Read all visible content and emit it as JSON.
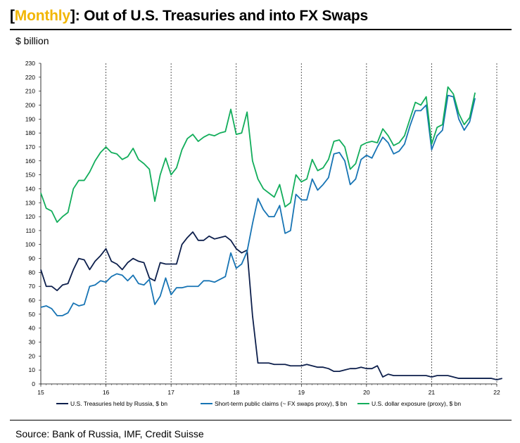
{
  "header": {
    "bracket_open": "[",
    "highlight": "Monthly",
    "bracket_close": "]",
    "title_text": ": Out of U.S. Treasuries and into FX Swaps",
    "unit": "$ billion"
  },
  "footer": {
    "source": "Source: Bank of Russia, IMF, Credit Suisse"
  },
  "chart_data": {
    "type": "line",
    "title": "[Monthly]: Out of U.S. Treasuries and into FX Swaps",
    "ylabel": "$ billion",
    "xlabel": "",
    "ylim": [
      0,
      230
    ],
    "y_ticks": [
      0,
      10,
      20,
      30,
      40,
      50,
      60,
      70,
      80,
      90,
      100,
      110,
      120,
      130,
      140,
      150,
      160,
      170,
      180,
      190,
      200,
      210,
      220,
      230
    ],
    "xlim": [
      15,
      22
    ],
    "x_ticks": [
      "15",
      "16",
      "17",
      "18",
      "19",
      "20",
      "21",
      "22"
    ],
    "x_tick_values": [
      15,
      16,
      17,
      18,
      19,
      20,
      21,
      22
    ],
    "year_dividers": [
      16,
      17,
      18,
      19,
      20,
      21,
      22
    ],
    "grid": false,
    "legend_placement": "bottom",
    "series": [
      {
        "name": "U.S. Treasuries held by Russia, $ bn",
        "color": "#0d1f4c",
        "start": 15.0,
        "step": 0.0833333,
        "values": [
          82,
          70,
          70,
          67,
          71,
          72,
          82,
          90,
          89,
          82,
          88,
          92,
          97,
          88,
          86,
          82,
          87,
          90,
          88,
          87,
          76,
          74,
          87,
          86,
          86,
          86,
          100,
          105,
          109,
          103,
          103,
          106,
          104,
          105,
          106,
          103,
          97,
          94,
          96,
          49,
          15,
          15,
          15,
          14,
          14,
          14,
          13,
          13,
          13,
          14,
          13,
          12,
          12,
          11,
          9,
          9,
          10,
          11,
          11,
          12,
          11,
          11,
          13,
          5,
          7,
          6,
          6,
          6,
          6,
          6,
          6,
          6,
          5,
          6,
          6,
          6,
          5,
          4,
          4,
          4,
          4,
          4,
          4,
          4,
          3,
          4
        ]
      },
      {
        "name": "Short-term public claims (~ FX swaps proxy), $ bn",
        "color": "#1774b4",
        "start": 15.0,
        "step": 0.0833333,
        "values": [
          55,
          56,
          54,
          49,
          49,
          51,
          58,
          56,
          57,
          70,
          71,
          74,
          73,
          77,
          79,
          78,
          74,
          78,
          72,
          71,
          75,
          57,
          63,
          76,
          64,
          69,
          69,
          70,
          70,
          70,
          74,
          74,
          73,
          75,
          77,
          94,
          83,
          86,
          95,
          115,
          133,
          125,
          120,
          120,
          128,
          108,
          110,
          136,
          132,
          132,
          147,
          139,
          143,
          148,
          165,
          166,
          160,
          143,
          147,
          161,
          164,
          162,
          170,
          177,
          173,
          165,
          167,
          172,
          185,
          196,
          196,
          200,
          168,
          178,
          182,
          207,
          206,
          190,
          182,
          188,
          205
        ]
      },
      {
        "name": "U.S. dollar exposure (proxy), $ bn",
        "color": "#12ad5b",
        "start": 15.0,
        "step": 0.0833333,
        "values": [
          137,
          126,
          124,
          116,
          120,
          123,
          140,
          146,
          146,
          152,
          160,
          166,
          170,
          166,
          165,
          161,
          163,
          169,
          161,
          158,
          154,
          131,
          150,
          162,
          150,
          155,
          168,
          176,
          179,
          174,
          177,
          179,
          178,
          180,
          181,
          197,
          179,
          180,
          195,
          160,
          147,
          140,
          137,
          134,
          143,
          127,
          130,
          150,
          145,
          147,
          161,
          153,
          155,
          161,
          174,
          175,
          170,
          154,
          158,
          171,
          173,
          174,
          173,
          183,
          178,
          171,
          173,
          178,
          190,
          202,
          200,
          206,
          172,
          184,
          186,
          213,
          208,
          194,
          186,
          191,
          209
        ]
      }
    ]
  }
}
